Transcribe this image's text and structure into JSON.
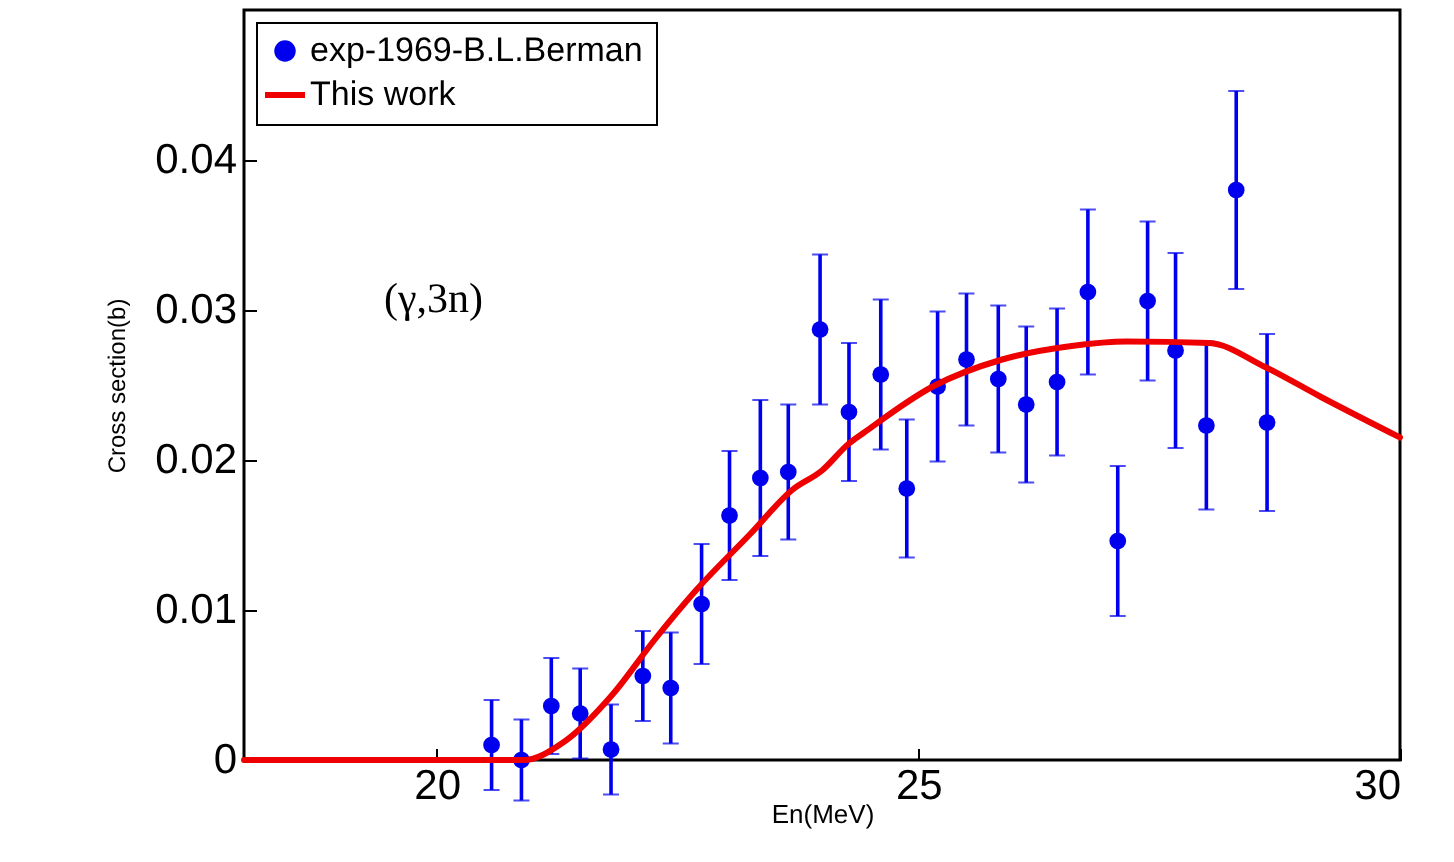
{
  "chart_data": {
    "type": "scatter",
    "xlabel": "En(MeV)",
    "ylabel": "Cross section(b)",
    "annotations": [
      "(γ,3n)"
    ],
    "xlim": [
      18,
      30
    ],
    "xticks": [
      20,
      25,
      30
    ],
    "ylim": [
      0,
      0.05
    ],
    "yticks": [
      0,
      0.01,
      0.02,
      0.03,
      0.04
    ],
    "grid": false,
    "legend": "top left",
    "series": [
      {
        "name": "exp-1969-B.L.Berman",
        "marker": "circle",
        "color": "#0000ee",
        "x": [
          20.57,
          20.88,
          21.19,
          21.49,
          21.81,
          22.14,
          22.43,
          22.75,
          23.04,
          23.36,
          23.65,
          23.98,
          24.28,
          24.61,
          24.88,
          25.2,
          25.5,
          25.83,
          26.12,
          26.44,
          26.76,
          27.07,
          27.38,
          27.67,
          27.99,
          28.3,
          28.62
        ],
        "values": [
          0.001,
          0,
          0.0036,
          0.0031,
          0.0007,
          0.0056,
          0.0048,
          0.0104,
          0.0163,
          0.0188,
          0.0192,
          0.0287,
          0.0232,
          0.0257,
          0.0181,
          0.0249,
          0.0267,
          0.0254,
          0.0237,
          0.0252,
          0.0312,
          0.0146,
          0.0306,
          0.0273,
          0.0223,
          0.038,
          0.0225
        ],
        "errors": [
          0.003,
          0.0027,
          0.0032,
          0.003,
          0.003,
          0.003,
          0.0037,
          0.004,
          0.0043,
          0.0052,
          0.0045,
          0.005,
          0.0046,
          0.005,
          0.0046,
          0.005,
          0.0044,
          0.0049,
          0.0052,
          0.0049,
          0.0055,
          0.005,
          0.0053,
          0.0065,
          0.0056,
          0.0066,
          0.0059
        ]
      },
      {
        "name": "This work",
        "type": "line",
        "marker": "none",
        "color": "#ee0000",
        "x": [
          18,
          20.9,
          21.32,
          21.83,
          22.26,
          22.69,
          23.26,
          23.69,
          24.0,
          24.28,
          24.43,
          25.15,
          25.87,
          26.59,
          27.16,
          28.02,
          28.6,
          29.18,
          30
        ],
        "values": [
          0,
          0,
          0.0012,
          0.0044,
          0.008,
          0.0113,
          0.0151,
          0.018,
          0.0193,
          0.0211,
          0.0218,
          0.0249,
          0.0267,
          0.0276,
          0.0279,
          0.0278,
          0.0262,
          0.0242,
          0.0215
        ]
      }
    ]
  }
}
